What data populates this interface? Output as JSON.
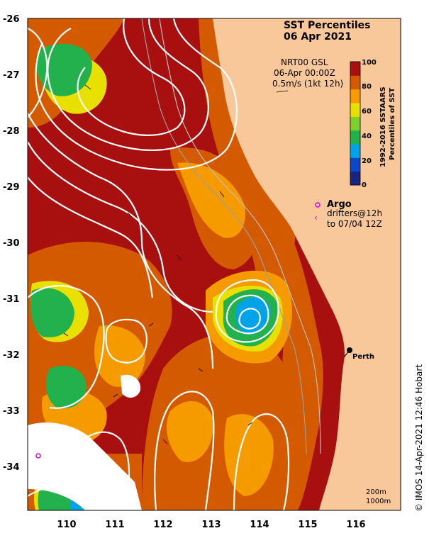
{
  "title": {
    "line1": "SST Percentiles",
    "line2": "06 Apr 2021"
  },
  "info": {
    "line1": "NRT00 GSL",
    "line2": "06-Apr 00:00Z",
    "line3": "0.5m/s (1kt 12h)"
  },
  "colorbar": {
    "title_line1": "1992-2016 SSTAARS",
    "title_line2": "Percentiles of SST",
    "ticks": [
      "0",
      "20",
      "40",
      "60",
      "80",
      "100"
    ],
    "colors": [
      "#1a237e",
      "#0d47c8",
      "#00a2e8",
      "#22b14c",
      "#7fd02a",
      "#e8e000",
      "#f59b00",
      "#d45a00",
      "#a81010"
    ]
  },
  "legend": {
    "argo_label": "Argo",
    "drifters_line1": "drifters@12h",
    "drifters_line2": "to 07/04 12Z",
    "argo_color": "#e000e0"
  },
  "place": {
    "label": "Perth"
  },
  "isobaths": {
    "line1": "200m",
    "line2": "1000m"
  },
  "axes": {
    "lat_ticks": [
      "-26",
      "-27",
      "-28",
      "-29",
      "-30",
      "-31",
      "-32",
      "-33",
      "-34"
    ],
    "lon_ticks": [
      "110",
      "111",
      "112",
      "113",
      "114",
      "115",
      "116"
    ]
  },
  "credit": "© IMOS 14-Apr-2021 12:46 Hobart",
  "palette": {
    "land": "#f9c89a",
    "warm": "#a81010",
    "orange": "#d45a00",
    "amber": "#f59b00",
    "yellow": "#e8e000",
    "green": "#22b14c",
    "cyan": "#00a2e8"
  }
}
